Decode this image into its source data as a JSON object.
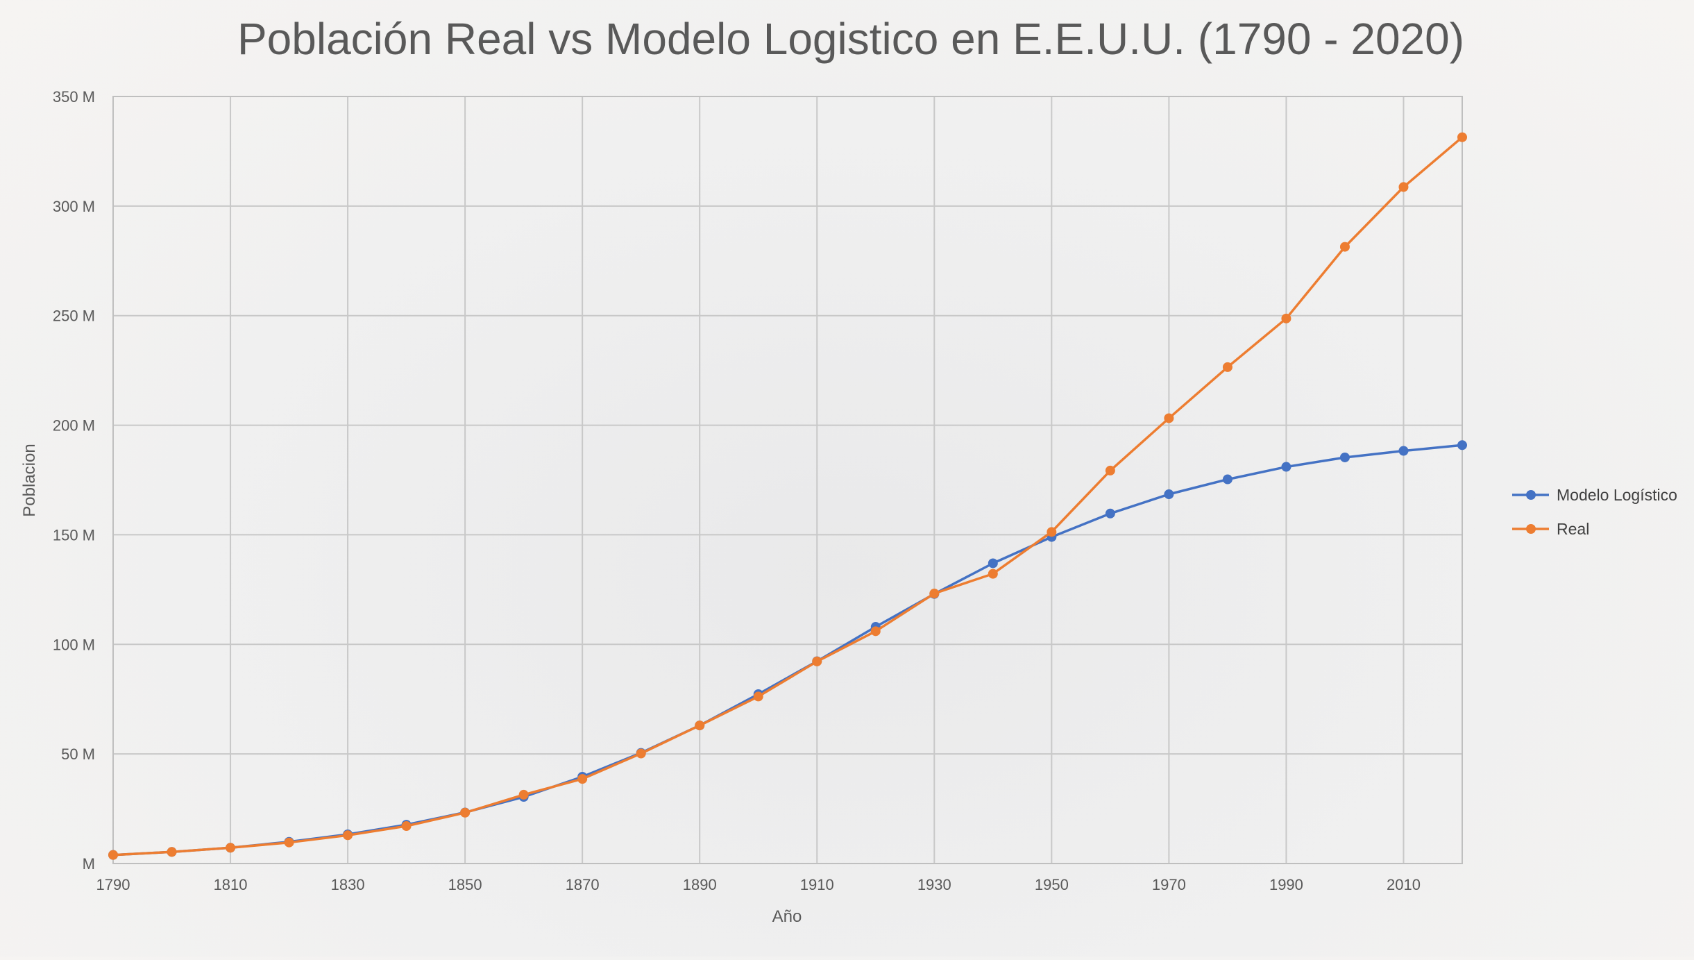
{
  "chart_data": {
    "type": "line",
    "title": "Población Real vs Modelo Logistico en E.E.U.U. (1790 - 2020)",
    "xlabel": "Año",
    "ylabel": "Poblacion",
    "x": [
      1790,
      1800,
      1810,
      1820,
      1830,
      1840,
      1850,
      1860,
      1870,
      1880,
      1890,
      1900,
      1910,
      1920,
      1930,
      1940,
      1950,
      1960,
      1970,
      1980,
      1990,
      2000,
      2010,
      2020
    ],
    "xlim": [
      1790,
      2020
    ],
    "x_ticks": [
      1790,
      1810,
      1830,
      1850,
      1870,
      1890,
      1910,
      1930,
      1950,
      1970,
      1990,
      2010
    ],
    "ylim": [
      0,
      350000000
    ],
    "y_ticks": [
      0,
      50000000,
      100000000,
      150000000,
      200000000,
      250000000,
      300000000,
      350000000
    ],
    "y_tick_labels": [
      "M",
      "50 M",
      "100 M",
      "150 M",
      "200 M",
      "250 M",
      "300 M",
      "350 M"
    ],
    "grid": true,
    "legend_position": "right",
    "series": [
      {
        "name": "Modelo Logístico",
        "color": "#4472c4",
        "values": [
          3900000,
          5300000,
          7200000,
          9900000,
          13300000,
          17700000,
          23300000,
          30400000,
          39600000,
          50500000,
          63000000,
          77300000,
          92300000,
          108000000,
          123000000,
          137000000,
          149000000,
          159700000,
          168500000,
          175300000,
          181000000,
          185300000,
          188300000,
          190900000
        ]
      },
      {
        "name": "Real",
        "color": "#ed7d31",
        "values": [
          3900000,
          5300000,
          7200000,
          9600000,
          12900000,
          17100000,
          23200000,
          31400000,
          38600000,
          50200000,
          63000000,
          76200000,
          92200000,
          106000000,
          123200000,
          132200000,
          151300000,
          179300000,
          203200000,
          226500000,
          248700000,
          281400000,
          308700000,
          331400000
        ]
      }
    ]
  }
}
